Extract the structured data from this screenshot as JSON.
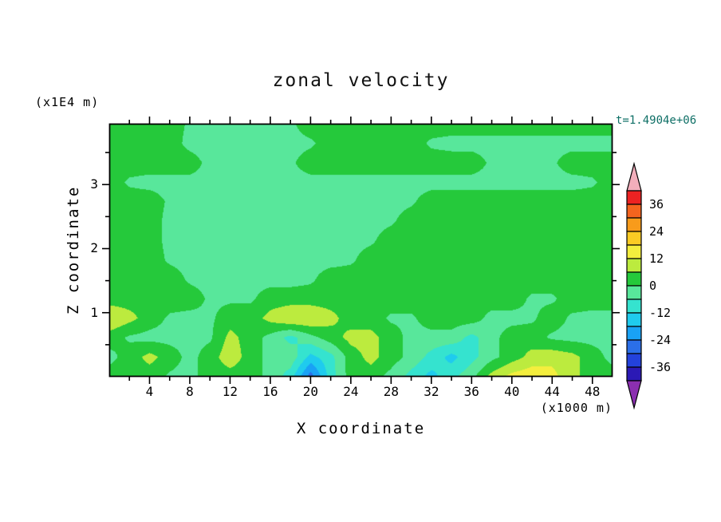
{
  "window": {
    "background": "#ffffff"
  },
  "annotation": {
    "text": "t=1.4904e+06",
    "color": "#0e6f66"
  },
  "chart_data": {
    "type": "heatmap",
    "subtype": "filled-contour",
    "title": "zonal velocity",
    "xlabel": "X coordinate",
    "x_unit_label": "(x1000 m)",
    "ylabel": "Z coordinate",
    "y_unit_label": "(x1E4 m)",
    "x_range": [
      0,
      50
    ],
    "z_range": [
      0,
      3.95
    ],
    "x_ticks_major": [
      4,
      8,
      12,
      16,
      20,
      24,
      28,
      32,
      36,
      40,
      44,
      48
    ],
    "x_tick_minor_step": 2,
    "y_ticks_major": [
      1,
      2,
      3
    ],
    "y_ticks_minor": [
      0.5,
      1.5,
      2.5,
      3.5
    ],
    "grid_lines": false,
    "legend_position": "right",
    "colorbar": {
      "labels": [
        "36",
        "24",
        "12",
        "0",
        "-12",
        "-24",
        "-36"
      ],
      "levels": [
        -42,
        -36,
        -30,
        -24,
        -18,
        -12,
        -6,
        0,
        6,
        12,
        18,
        24,
        30,
        36,
        42
      ],
      "colors": [
        "#8B2FB0",
        "#2B19B5",
        "#2342DC",
        "#2B6FE8",
        "#19A2F5",
        "#1FCBEE",
        "#35E3CF",
        "#58E79B",
        "#25C93B",
        "#BCEB3E",
        "#F4EE3E",
        "#FBCB24",
        "#F89B1B",
        "#F4641E",
        "#EC2222",
        "#F2AEBB"
      ]
    },
    "field": {
      "rows_order": "top_to_bottom",
      "nx": 26,
      "nz": 14,
      "values": [
        [
          3,
          3,
          3,
          3,
          -1,
          -2,
          -2,
          -2,
          -2,
          -1,
          3,
          3,
          3,
          3,
          3,
          3,
          3,
          3,
          3,
          3,
          3,
          3,
          3,
          3,
          3,
          3
        ],
        [
          3,
          3,
          3,
          3,
          -2,
          -3,
          -3,
          -3,
          -2,
          -2,
          -1,
          3,
          3,
          3,
          3,
          3,
          -1,
          -2,
          -2,
          -2,
          -2,
          -2,
          -2,
          -2,
          -2,
          -2
        ],
        [
          3,
          3,
          3,
          3,
          3,
          -2,
          -2,
          -2,
          -2,
          -1,
          3,
          3,
          3,
          3,
          3,
          3,
          3,
          3,
          3,
          -1,
          -2,
          -2,
          -1,
          3,
          3,
          3
        ],
        [
          3,
          -1,
          -2,
          -2,
          -2,
          -2,
          -2,
          -2,
          -2,
          -2,
          -2,
          -2,
          -2,
          -2,
          -2,
          -2,
          -2,
          -2,
          -2,
          -2,
          -2,
          -2,
          -2,
          -2,
          -1,
          3
        ],
        [
          3,
          3,
          3,
          -1,
          -2,
          -2,
          -2,
          -2,
          -2,
          -2,
          -2,
          -2,
          -2,
          -2,
          -2,
          -1,
          3,
          3,
          3,
          3,
          3,
          3,
          3,
          3,
          3,
          3
        ],
        [
          3,
          3,
          3,
          -2,
          -2,
          -2,
          -2,
          -2,
          -2,
          -2,
          -2,
          -2,
          -2,
          -2,
          -1,
          3,
          3,
          3,
          3,
          3,
          3,
          3,
          3,
          3,
          3,
          3
        ],
        [
          3,
          3,
          3,
          -2,
          -2,
          -2,
          -2,
          -2,
          -2,
          -2,
          -2,
          -2,
          -2,
          -1,
          3,
          3,
          3,
          3,
          3,
          3,
          3,
          3,
          3,
          3,
          3,
          3
        ],
        [
          3,
          3,
          3,
          -1,
          -2,
          -2,
          -2,
          -2,
          -2,
          -2,
          -2,
          -2,
          -1,
          3,
          3,
          3,
          3,
          3,
          3,
          3,
          3,
          3,
          3,
          3,
          3,
          3
        ],
        [
          3,
          3,
          3,
          3,
          -1,
          -2,
          -2,
          -2,
          -2,
          -2,
          -1,
          3,
          3,
          3,
          3,
          3,
          3,
          3,
          3,
          3,
          3,
          3,
          3,
          3,
          3,
          3
        ],
        [
          3,
          3,
          3,
          3,
          3,
          -1,
          -1,
          -1,
          3,
          3,
          3,
          3,
          3,
          3,
          3,
          3,
          3,
          3,
          3,
          3,
          3,
          -1,
          -1,
          3,
          3,
          3
        ],
        [
          12,
          8,
          3,
          -1,
          -2,
          -1,
          3,
          3,
          8,
          12,
          12,
          8,
          3,
          3,
          -1,
          -1,
          3,
          3,
          3,
          -2,
          -2,
          -1,
          3,
          -1,
          -2,
          -2
        ],
        [
          3,
          -1,
          -2,
          -2,
          -2,
          -1,
          8,
          3,
          -2,
          -8,
          -2,
          3,
          8,
          8,
          3,
          -2,
          -2,
          -2,
          -8,
          -2,
          3,
          3,
          -1,
          -2,
          -2,
          -2
        ],
        [
          -2,
          3,
          8,
          3,
          -2,
          3,
          10,
          3,
          -2,
          -2,
          -14,
          -8,
          3,
          8,
          3,
          -2,
          -8,
          -14,
          -8,
          -2,
          3,
          8,
          10,
          8,
          3,
          -2
        ],
        [
          3,
          3,
          3,
          -1,
          -2,
          3,
          3,
          3,
          -2,
          -9,
          -27,
          -9,
          3,
          3,
          -2,
          -8,
          -14,
          -8,
          -2,
          8,
          14,
          16,
          14,
          8,
          3,
          3
        ]
      ]
    }
  }
}
